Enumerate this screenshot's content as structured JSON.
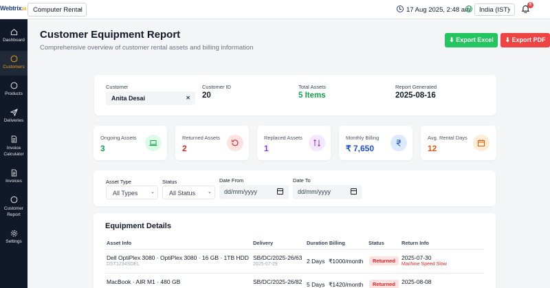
{
  "topbar": {
    "logo_main": "Webtrix",
    "logo_accent": "24",
    "company_selected": "Computer Rental",
    "datetime": "17 Aug 2025, 2:48 am",
    "timezone": "India (IST)",
    "notification_count": "6"
  },
  "sidebar": {
    "items": [
      {
        "label": "Dashboard",
        "icon": "home-icon"
      },
      {
        "label": "Customers",
        "icon": "circle-icon"
      },
      {
        "label": "Products",
        "icon": "circle-icon"
      },
      {
        "label": "Deliveries",
        "icon": "send-icon"
      },
      {
        "label": "Invoice Calculator",
        "icon": "document-icon"
      },
      {
        "label": "Invoices",
        "icon": "document-icon"
      },
      {
        "label": "Customer Report",
        "icon": "circle-icon"
      },
      {
        "label": "Settings",
        "icon": "gear-icon"
      }
    ],
    "active_index": 1
  },
  "header": {
    "title": "Customer Equipment Report",
    "subtitle": "Comprehensive overview of customer rental assets and billing information",
    "export_excel": "Export Excel",
    "export_pdf": "Export PDF"
  },
  "summary": {
    "customer_label": "Customer",
    "customer_value": "Anita Desai",
    "customer_id_label": "Customer ID",
    "customer_id": "20",
    "total_assets_label": "Total Assets",
    "total_assets": "5 Items",
    "report_generated_label": "Report Generated",
    "report_generated": "2025-08-16"
  },
  "stats": [
    {
      "label": "Ongoing Assets",
      "value": "3",
      "color": "#16a34a",
      "icon": "laptop-icon",
      "icon_bg": "#dcfce7"
    },
    {
      "label": "Returned Assets",
      "value": "2",
      "color": "#dc2626",
      "icon": "rotate-ccw-icon",
      "icon_bg": "#fee2e2"
    },
    {
      "label": "Replaced Assets",
      "value": "1",
      "color": "#9333ea",
      "icon": "swap-icon",
      "icon_bg": "#f3e8ff"
    },
    {
      "label": "Monthly Billing",
      "value": "₹ 7,650",
      "color": "#1d4ed8",
      "icon": "rupee-icon",
      "icon_bg": "#dbeafe"
    },
    {
      "label": "Avg. Rental Days",
      "value": "12",
      "color": "#ea580c",
      "icon": "calendar-icon",
      "icon_bg": "#ffedd5"
    }
  ],
  "filters": {
    "asset_type_label": "Asset Type",
    "asset_type_value": "All Types",
    "status_label": "Status",
    "status_value": "All Status",
    "date_from_label": "Date From",
    "date_from_placeholder": "dd/mm/yyyy",
    "date_to_label": "Date To",
    "date_to_placeholder": "dd/mm/yyyy"
  },
  "equipment": {
    "title": "Equipment Details",
    "columns": [
      "Asset Info",
      "Delivery",
      "Duration Billing",
      "Status",
      "Return Info"
    ],
    "rows": [
      {
        "asset": "Dell OptiPlex 3080 · OptiPlex 3080 · 16 GB · 1TB HDD",
        "asset_id": "DST1234SDEL",
        "delivery_no": "SB/DC/2025-26/63",
        "delivery_date": "2025-07-29",
        "duration": "2 Days",
        "billing": "₹1000/month",
        "status": "Returned",
        "return_date": "2025-07-30",
        "return_reason": "Machine Speed Slow"
      },
      {
        "asset": "MacBook · AIR M1 · 480 GB",
        "asset_id": "",
        "delivery_no": "SB/DC/2025-26/82",
        "delivery_date": "",
        "duration": "5 Days",
        "billing": "₹1420/month",
        "status": "Returned",
        "return_date": "2025-08-08",
        "return_reason": ""
      }
    ]
  }
}
